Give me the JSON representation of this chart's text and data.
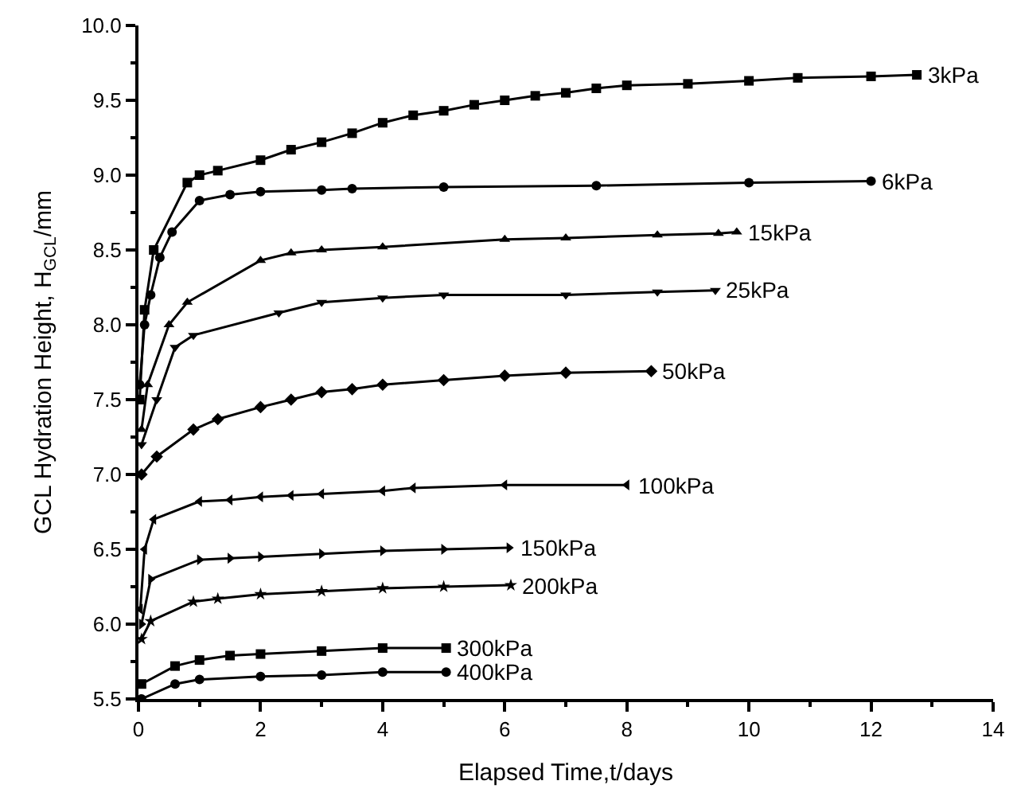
{
  "chart_data": {
    "type": "line",
    "xlabel": "Elapsed Time,t/days",
    "ylabel": "GCL Hydration Height, H$_{GCL}$/mm",
    "xlim": [
      0,
      14
    ],
    "xticks": [
      0,
      2,
      4,
      6,
      8,
      10,
      12,
      14
    ],
    "ylim": [
      5.5,
      10
    ],
    "yticks": [
      {
        "value": 5.5,
        "label": "5.5"
      },
      {
        "value": 6,
        "label": "6.0"
      },
      {
        "value": 6.5,
        "label": "6.5"
      },
      {
        "value": 7,
        "label": "7.0"
      },
      {
        "value": 7.5,
        "label": "7.5"
      },
      {
        "value": 8,
        "label": "8.0"
      },
      {
        "value": 8.5,
        "label": "8.5"
      },
      {
        "value": 9,
        "label": "9.0"
      },
      {
        "value": 9.5,
        "label": "9.5"
      },
      {
        "value": 10,
        "label": "10.0"
      }
    ],
    "legend": false,
    "line_style": "solid",
    "series": [
      {
        "name": "3kPa",
        "color": "#000000",
        "marker": "square",
        "x": [
          0.02,
          0.1,
          0.25,
          0.8,
          1,
          1.3,
          2,
          2.5,
          3,
          3.5,
          4,
          4.5,
          5,
          5.5,
          6,
          6.5,
          7,
          7.5,
          8,
          9,
          10,
          10.8,
          12,
          12.75
        ],
        "values": [
          7.5,
          8.1,
          8.5,
          8.95,
          9.0,
          9.03,
          9.1,
          9.17,
          9.22,
          9.28,
          9.35,
          9.4,
          9.43,
          9.47,
          9.5,
          9.53,
          9.55,
          9.58,
          9.6,
          9.61,
          9.63,
          9.65,
          9.66,
          9.67
        ]
      },
      {
        "name": "6kPa",
        "color": "#000000",
        "marker": "circle",
        "x": [
          0.02,
          0.1,
          0.2,
          0.35,
          0.55,
          1,
          1.5,
          2,
          3,
          3.5,
          5,
          7.5,
          10,
          12
        ],
        "values": [
          7.6,
          8.0,
          8.2,
          8.45,
          8.62,
          8.83,
          8.87,
          8.89,
          8.9,
          8.91,
          8.92,
          8.93,
          8.95,
          8.96
        ]
      },
      {
        "name": "15kPa",
        "color": "#000000",
        "marker": "triangle",
        "x": [
          0.05,
          0.15,
          0.5,
          0.8,
          2,
          2.5,
          3,
          4,
          6,
          7,
          8.5,
          9.5,
          9.8
        ],
        "values": [
          7.3,
          7.6,
          8.0,
          8.15,
          8.43,
          8.48,
          8.5,
          8.52,
          8.57,
          8.58,
          8.6,
          8.61,
          8.62
        ]
      },
      {
        "name": "25kPa",
        "color": "#000000",
        "marker": "triangle-down",
        "x": [
          0.05,
          0.3,
          0.6,
          0.9,
          2.3,
          3,
          4,
          5,
          7,
          8.5,
          9.45
        ],
        "values": [
          7.2,
          7.5,
          7.85,
          7.93,
          8.08,
          8.15,
          8.18,
          8.2,
          8.2,
          8.22,
          8.23
        ]
      },
      {
        "name": "50kPa",
        "color": "#000000",
        "marker": "diamond",
        "x": [
          0.05,
          0.3,
          0.9,
          1.3,
          2,
          2.5,
          3,
          3.5,
          4,
          5,
          6,
          7,
          8.4
        ],
        "values": [
          7.0,
          7.12,
          7.3,
          7.37,
          7.45,
          7.5,
          7.55,
          7.57,
          7.6,
          7.63,
          7.66,
          7.68,
          7.69
        ]
      },
      {
        "name": "100kPa",
        "color": "#000000",
        "marker": "triangle-left",
        "x": [
          0.03,
          0.1,
          0.25,
          1,
          1.5,
          2,
          2.5,
          3,
          4,
          4.5,
          6,
          8
        ],
        "values": [
          6.1,
          6.5,
          6.7,
          6.82,
          6.83,
          6.85,
          6.86,
          6.87,
          6.89,
          6.91,
          6.93,
          6.93
        ]
      },
      {
        "name": "150kPa",
        "color": "#000000",
        "marker": "triangle-right",
        "x": [
          0.05,
          0.2,
          1,
          1.5,
          2,
          3,
          4,
          5,
          6.07
        ],
        "values": [
          6.0,
          6.3,
          6.43,
          6.44,
          6.45,
          6.47,
          6.49,
          6.5,
          6.51
        ]
      },
      {
        "name": "200kPa",
        "color": "#000000",
        "marker": "star",
        "x": [
          0.05,
          0.2,
          0.9,
          1.3,
          2,
          3,
          4,
          5,
          6.1
        ],
        "values": [
          5.9,
          6.02,
          6.15,
          6.17,
          6.2,
          6.22,
          6.24,
          6.25,
          6.26
        ]
      },
      {
        "name": "300kPa",
        "color": "#000000",
        "marker": "square",
        "x": [
          0.05,
          0.6,
          1,
          1.5,
          2,
          3,
          4,
          5.04
        ],
        "values": [
          5.6,
          5.72,
          5.76,
          5.79,
          5.8,
          5.82,
          5.84,
          5.84
        ]
      },
      {
        "name": "400kPa",
        "color": "#000000",
        "marker": "circle",
        "x": [
          0.05,
          0.6,
          1,
          2,
          3,
          4,
          5.04
        ],
        "values": [
          5.5,
          5.6,
          5.63,
          5.65,
          5.66,
          5.68,
          5.68
        ]
      }
    ]
  }
}
